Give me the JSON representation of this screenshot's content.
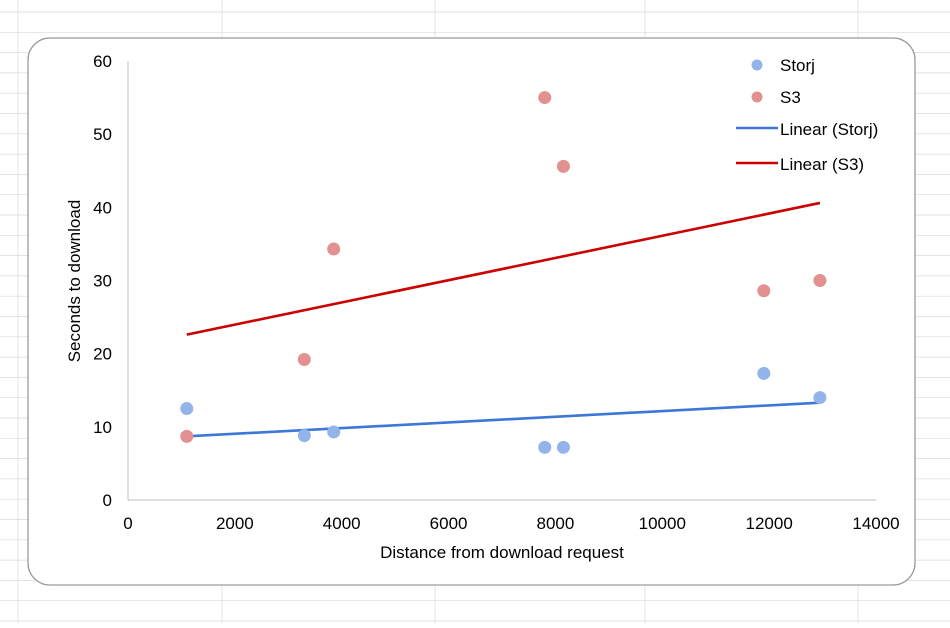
{
  "chart_data": {
    "type": "scatter",
    "title": "",
    "xlabel": "Distance from download request",
    "ylabel": "Seconds  to download",
    "xlim": [
      0,
      14000
    ],
    "ylim": [
      0,
      60
    ],
    "x_ticks": [
      0,
      2000,
      4000,
      6000,
      8000,
      10000,
      12000,
      14000
    ],
    "y_ticks": [
      0,
      10,
      20,
      30,
      40,
      50,
      60
    ],
    "grid": false,
    "legend_position": "top-right",
    "series": [
      {
        "name": "Storj",
        "type": "scatter",
        "color": "#93b4ea",
        "points": [
          {
            "x": 1100,
            "y": 12.5
          },
          {
            "x": 3300,
            "y": 8.8
          },
          {
            "x": 3850,
            "y": 9.3
          },
          {
            "x": 7800,
            "y": 7.2
          },
          {
            "x": 8150,
            "y": 7.2
          },
          {
            "x": 11900,
            "y": 17.3
          },
          {
            "x": 12950,
            "y": 14.0
          }
        ]
      },
      {
        "name": "S3",
        "type": "scatter",
        "color": "#e29090",
        "points": [
          {
            "x": 1100,
            "y": 8.7
          },
          {
            "x": 3300,
            "y": 19.2
          },
          {
            "x": 3850,
            "y": 34.3
          },
          {
            "x": 7800,
            "y": 55.0
          },
          {
            "x": 8150,
            "y": 45.6
          },
          {
            "x": 11900,
            "y": 28.6
          },
          {
            "x": 12950,
            "y": 30.0
          }
        ]
      },
      {
        "name": "Linear (Storj)",
        "type": "trendline",
        "color": "#3c78d8",
        "x": [
          1100,
          12950
        ],
        "y": [
          8.7,
          13.3
        ]
      },
      {
        "name": "Linear (S3)",
        "type": "trendline",
        "color": "#cc0000",
        "x": [
          1100,
          12950
        ],
        "y": [
          22.6,
          40.6
        ]
      }
    ]
  },
  "page": {
    "background_grid_color": "#d9d9d9",
    "frame_color": "#9a9a9a"
  }
}
